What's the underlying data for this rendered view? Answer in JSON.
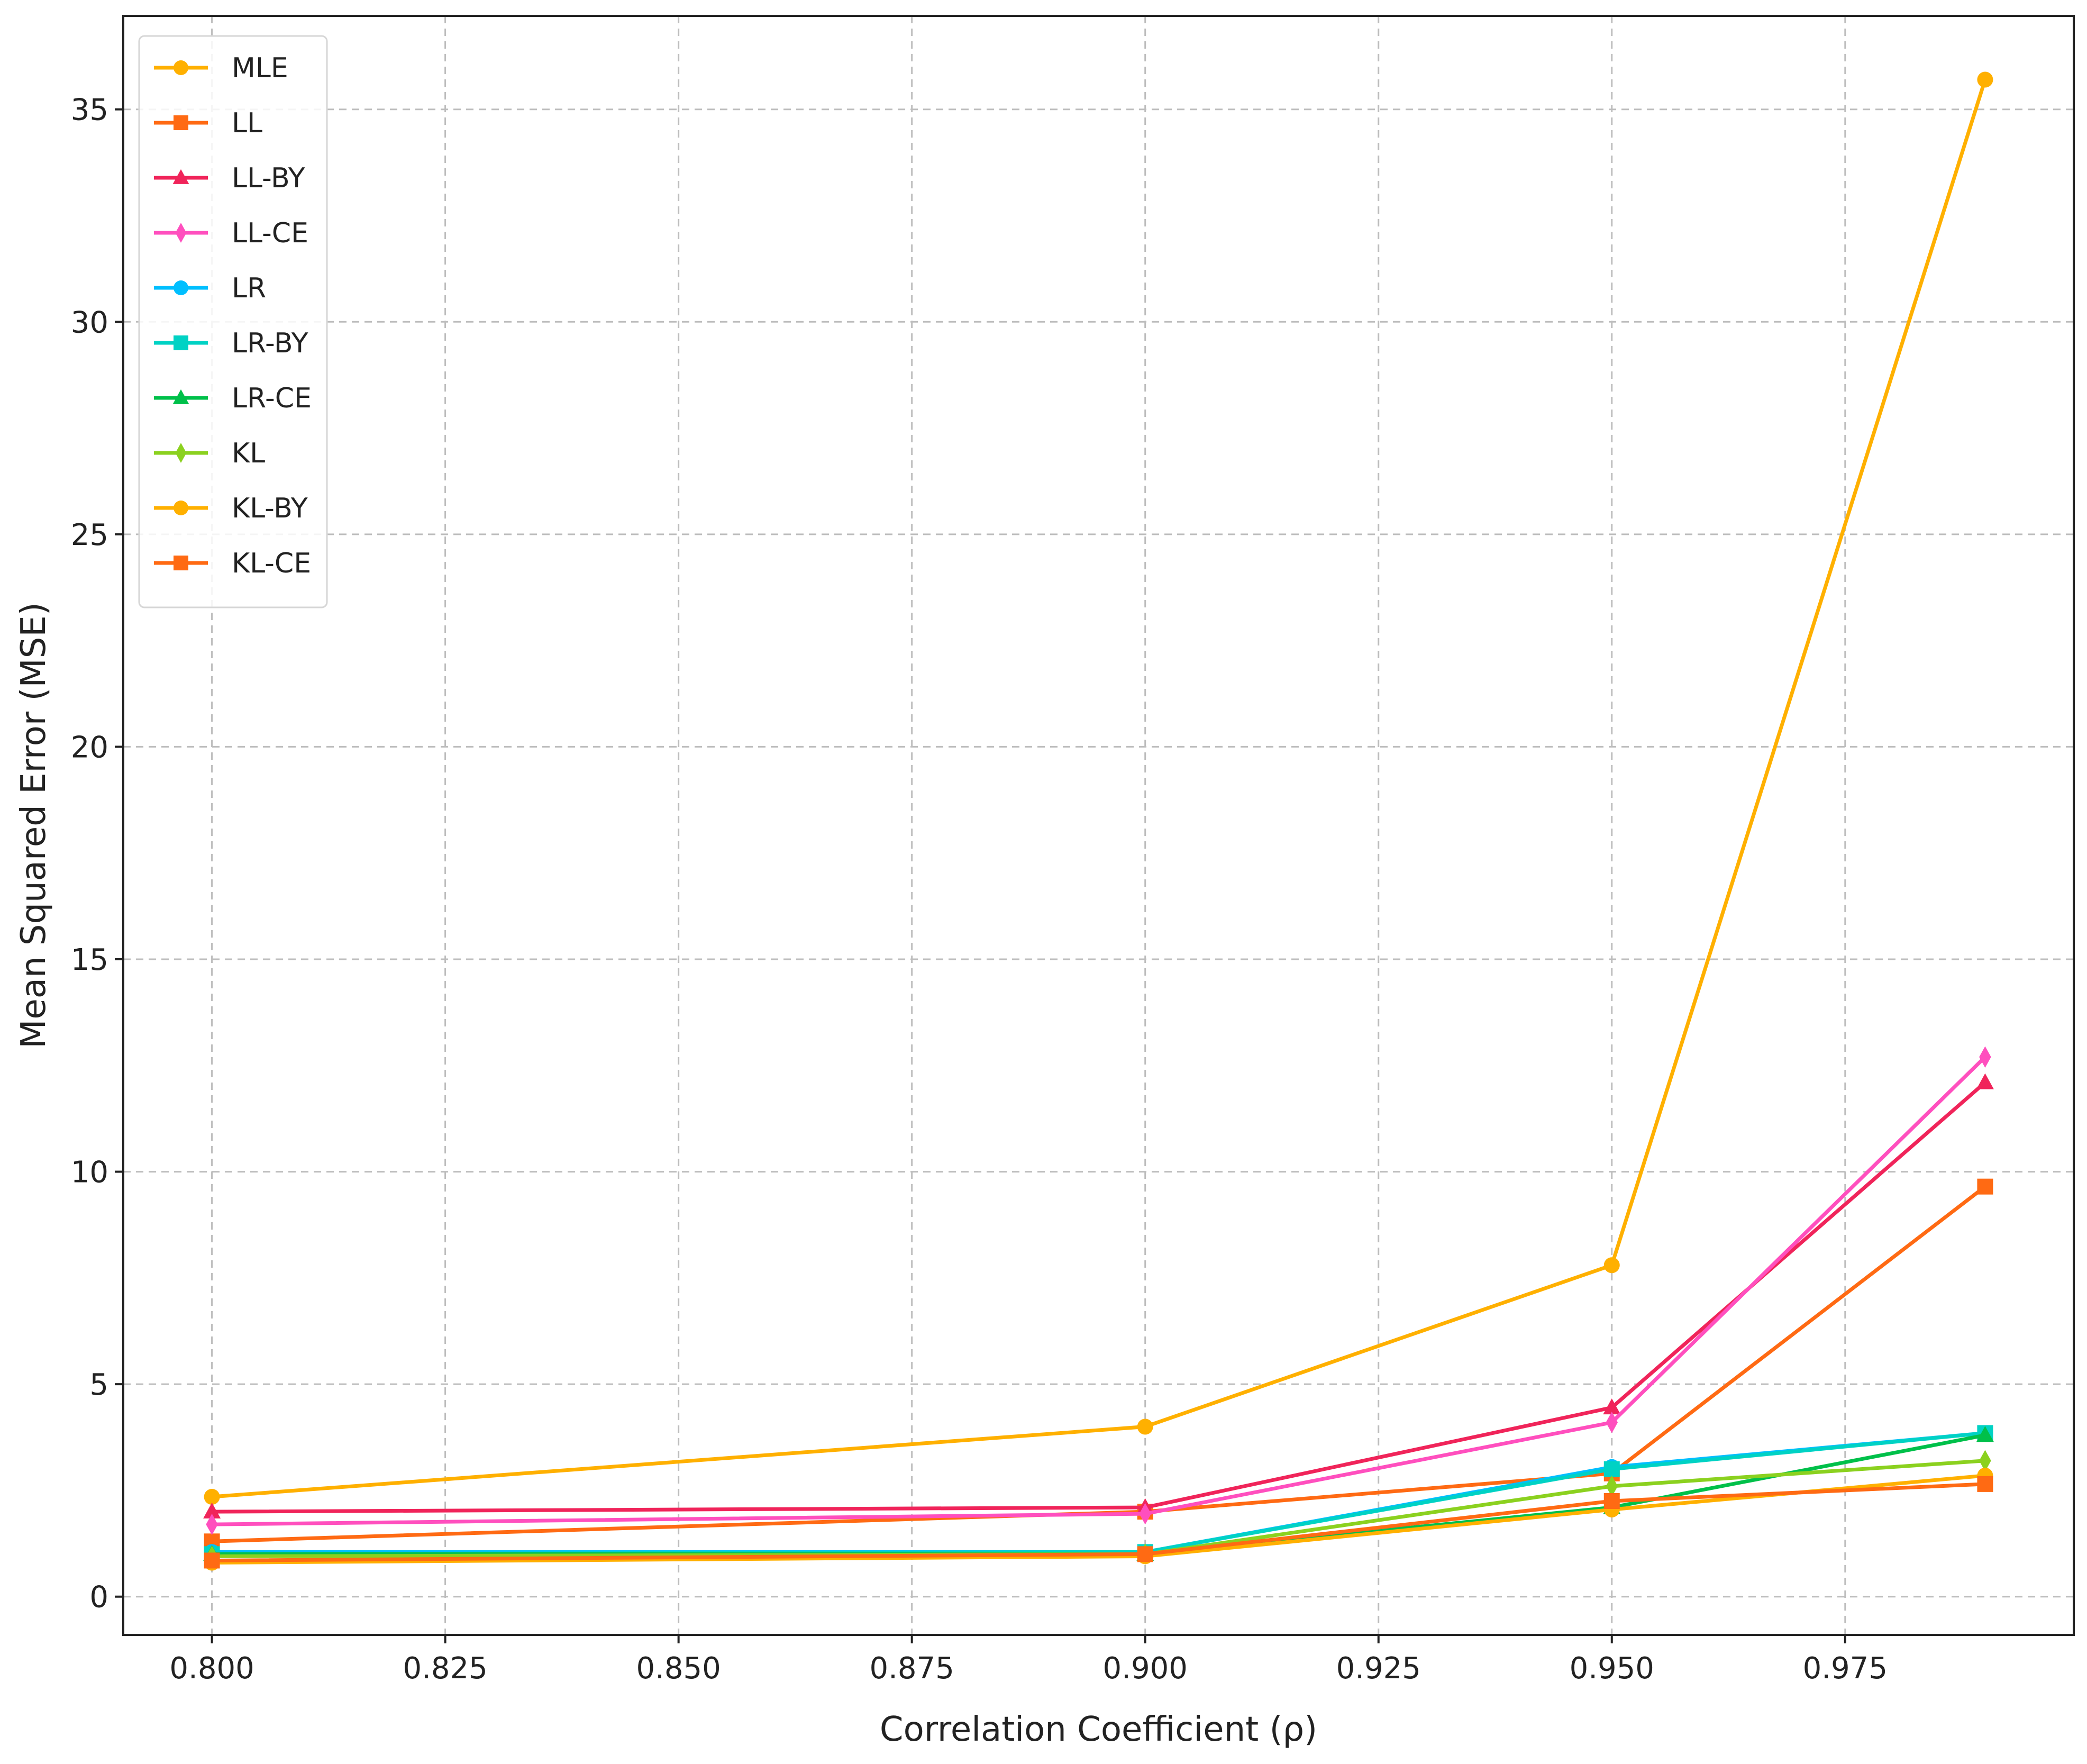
{
  "chart_data": {
    "type": "line",
    "title": "",
    "xlabel": "Correlation Coefficient (ρ)",
    "ylabel": "Mean Squared Error (MSE)",
    "x": [
      0.8,
      0.9,
      0.95,
      0.99
    ],
    "xlim": [
      0.7905,
      0.9995
    ],
    "ylim": [
      -0.9,
      37.2
    ],
    "xticks": [
      0.8,
      0.825,
      0.85,
      0.875,
      0.9,
      0.925,
      0.95,
      0.975
    ],
    "xtick_labels": [
      "0.800",
      "0.825",
      "0.850",
      "0.875",
      "0.900",
      "0.925",
      "0.950",
      "0.975"
    ],
    "yticks": [
      0,
      5,
      10,
      15,
      20,
      25,
      30,
      35
    ],
    "ytick_labels": [
      "0",
      "5",
      "10",
      "15",
      "20",
      "25",
      "30",
      "35"
    ],
    "grid": true,
    "legend_position": "top-left",
    "series": [
      {
        "name": "MLE",
        "color": "#FFB000",
        "marker": "circle",
        "values": [
          2.35,
          4.0,
          7.8,
          35.7
        ]
      },
      {
        "name": "LL",
        "color": "#FF6A13",
        "marker": "square",
        "values": [
          1.3,
          2.0,
          2.9,
          9.65
        ]
      },
      {
        "name": "LL-BY",
        "color": "#F0245A",
        "marker": "triangle",
        "values": [
          2.0,
          2.1,
          4.45,
          12.1
        ]
      },
      {
        "name": "LL-CE",
        "color": "#FF4FBE",
        "marker": "diamond",
        "values": [
          1.7,
          1.95,
          4.1,
          12.7
        ]
      },
      {
        "name": "LR",
        "color": "#00BFFF",
        "marker": "circle",
        "values": [
          1.05,
          1.05,
          3.05,
          3.85
        ]
      },
      {
        "name": "LR-BY",
        "color": "#00D2C4",
        "marker": "square",
        "values": [
          1.0,
          1.05,
          3.0,
          3.85
        ]
      },
      {
        "name": "LR-CE",
        "color": "#00C04A",
        "marker": "triangle",
        "values": [
          1.0,
          1.0,
          2.1,
          3.8
        ]
      },
      {
        "name": "KL",
        "color": "#8BD11F",
        "marker": "diamond",
        "values": [
          0.95,
          1.0,
          2.6,
          3.2
        ]
      },
      {
        "name": "KL-BY",
        "color": "#FFB000",
        "marker": "circle",
        "values": [
          0.8,
          0.95,
          2.05,
          2.85
        ]
      },
      {
        "name": "KL-CE",
        "color": "#FF6A13",
        "marker": "square",
        "values": [
          0.85,
          1.0,
          2.25,
          2.65
        ]
      }
    ]
  }
}
